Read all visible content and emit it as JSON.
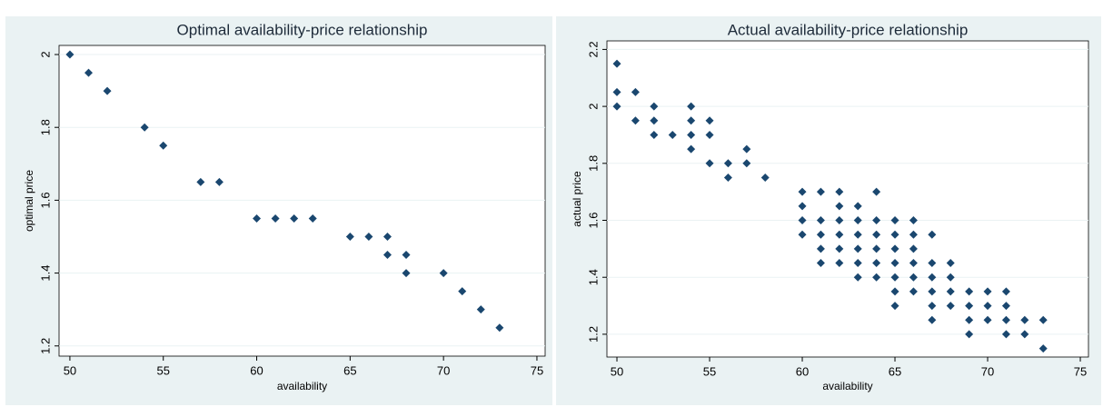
{
  "chart_data": [
    {
      "type": "scatter",
      "title": "Optimal availability-price relationship",
      "x_label": "availability",
      "y_label": "optimal price",
      "color": "#1a476f",
      "marker": "diamond",
      "grid": true,
      "xlim": [
        49.42,
        75.44
      ],
      "ylim": [
        1.172,
        2.025
      ],
      "xticks": [
        50,
        55,
        60,
        65,
        70,
        75
      ],
      "yticks": [
        1.2,
        1.4,
        1.6,
        1.8,
        2
      ],
      "x": [
        50,
        51,
        52,
        54,
        55,
        57,
        58,
        60,
        61,
        62,
        63,
        65,
        66,
        67,
        67,
        68,
        68,
        70,
        71,
        72,
        73
      ],
      "values": [
        2,
        1.95,
        1.9,
        1.8,
        1.75,
        1.65,
        1.65,
        1.55,
        1.55,
        1.55,
        1.55,
        1.5,
        1.5,
        1.5,
        1.45,
        1.45,
        1.4,
        1.4,
        1.35,
        1.3,
        1.25
      ]
    },
    {
      "type": "scatter",
      "title": "Actual availability-price relationship",
      "x_label": "availability",
      "y_label": "actual price",
      "color": "#1a476f",
      "marker": "diamond",
      "grid": true,
      "xlim": [
        49.46,
        75.44
      ],
      "ylim": [
        1.12,
        2.23
      ],
      "xticks": [
        50,
        55,
        60,
        65,
        70,
        75
      ],
      "yticks": [
        1.2,
        1.4,
        1.6,
        1.8,
        2,
        2.2
      ],
      "x": [
        50,
        50,
        50,
        51,
        51,
        52,
        52,
        52,
        53,
        54,
        54,
        54,
        54,
        55,
        55,
        55,
        56,
        56,
        57,
        57,
        58,
        60,
        60,
        60,
        60,
        61,
        61,
        61,
        61,
        61,
        62,
        62,
        62,
        62,
        62,
        62,
        63,
        63,
        63,
        63,
        63,
        63,
        64,
        64,
        64,
        64,
        64,
        64,
        65,
        65,
        65,
        65,
        65,
        65,
        65,
        66,
        66,
        66,
        66,
        66,
        66,
        67,
        67,
        67,
        67,
        67,
        67,
        68,
        68,
        68,
        68,
        69,
        69,
        69,
        69,
        70,
        70,
        70,
        71,
        71,
        71,
        71,
        72,
        72,
        73,
        73
      ],
      "values": [
        2.15,
        2.05,
        2,
        2.05,
        1.95,
        2,
        1.95,
        1.9,
        1.9,
        2,
        1.95,
        1.9,
        1.85,
        1.95,
        1.9,
        1.8,
        1.8,
        1.75,
        1.85,
        1.8,
        1.75,
        1.7,
        1.65,
        1.6,
        1.55,
        1.7,
        1.6,
        1.55,
        1.5,
        1.45,
        1.7,
        1.65,
        1.6,
        1.55,
        1.5,
        1.45,
        1.65,
        1.6,
        1.55,
        1.5,
        1.45,
        1.4,
        1.7,
        1.6,
        1.55,
        1.5,
        1.45,
        1.4,
        1.6,
        1.55,
        1.5,
        1.45,
        1.4,
        1.35,
        1.3,
        1.6,
        1.55,
        1.5,
        1.45,
        1.4,
        1.35,
        1.55,
        1.45,
        1.4,
        1.35,
        1.3,
        1.25,
        1.45,
        1.4,
        1.35,
        1.3,
        1.35,
        1.3,
        1.25,
        1.2,
        1.35,
        1.3,
        1.25,
        1.35,
        1.3,
        1.25,
        1.2,
        1.25,
        1.2,
        1.25,
        1.15
      ]
    }
  ]
}
